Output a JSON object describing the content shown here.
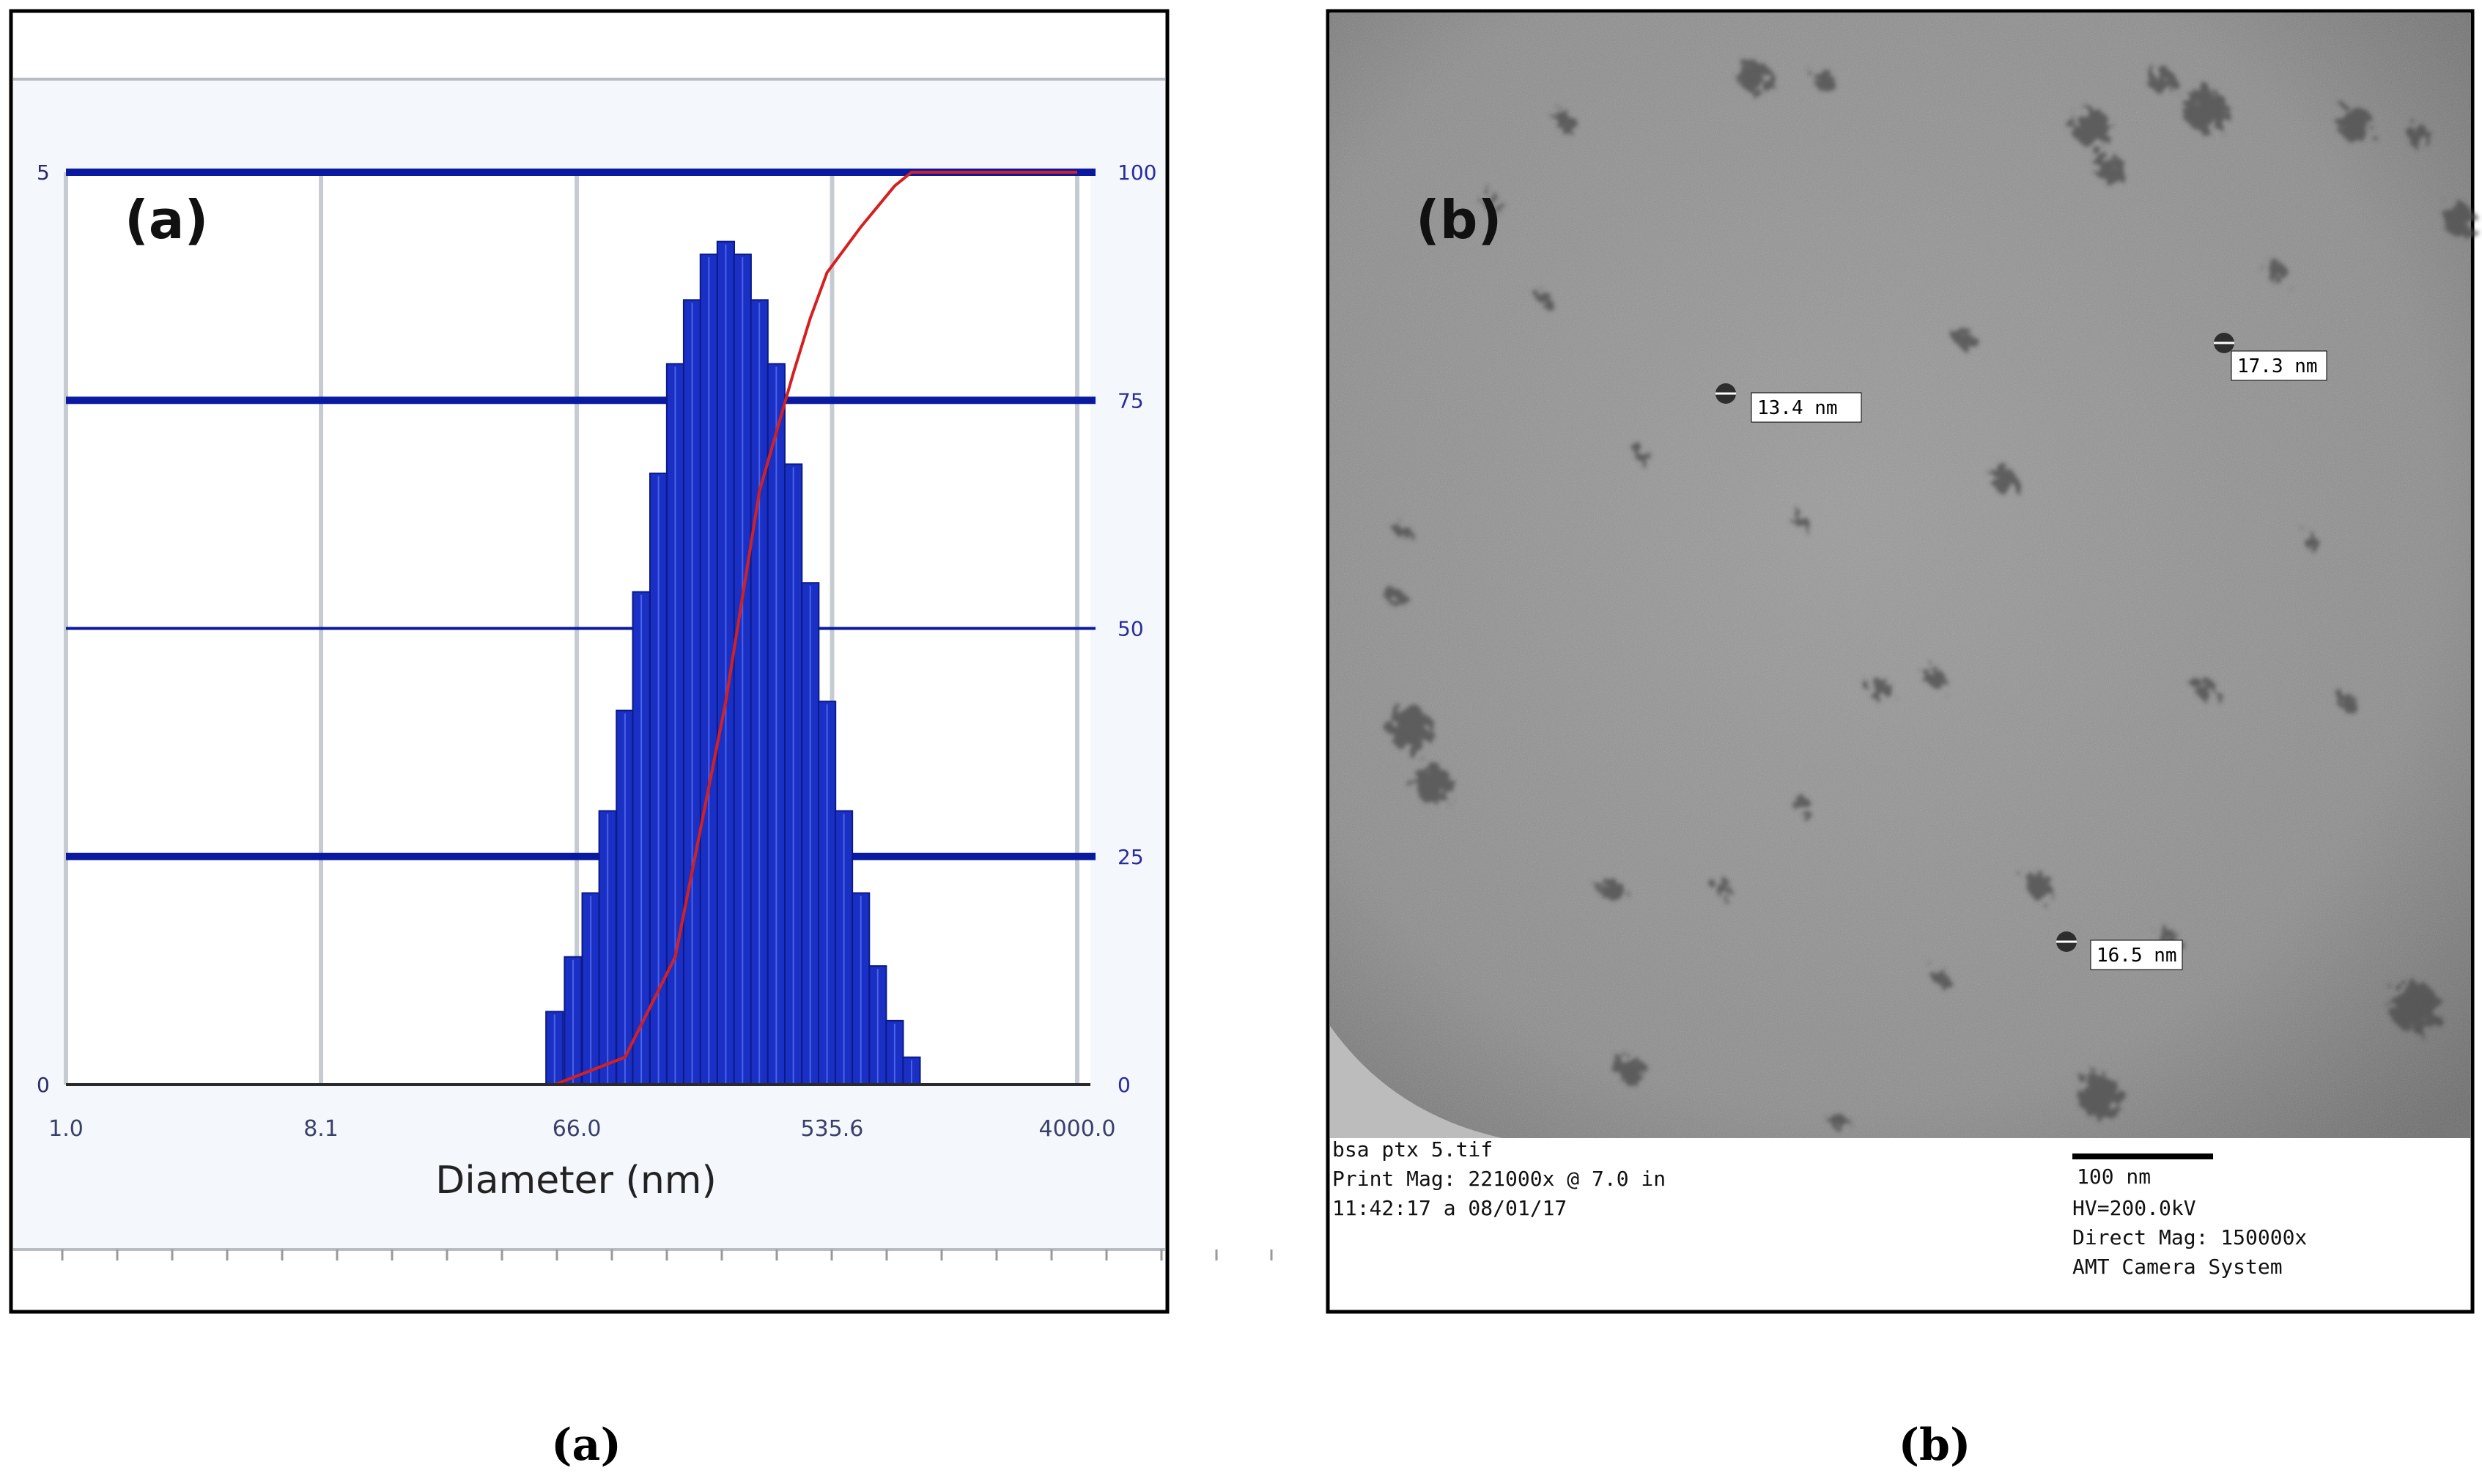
{
  "panel_a": {
    "label": "(a)",
    "caption": "(a)"
  },
  "panel_b": {
    "label": "(b)",
    "caption": "(b)",
    "measurements": [
      {
        "text": "13.4 nm"
      },
      {
        "text": "17.3 nm"
      },
      {
        "text": "16.5 nm"
      }
    ],
    "meta_left": [
      "bsa ptx 5.tif",
      "Print Mag: 221000x @ 7.0 in",
      "11:42:17 a 08/01/17"
    ],
    "scale_bar_label": "100 nm",
    "meta_right": [
      "HV=200.0kV",
      "Direct Mag: 150000x",
      "AMT Camera System"
    ]
  },
  "colors": {
    "bar_fill": "#1a2fc4",
    "bar_stroke": "#0a1a8a",
    "gridline_blue": "#0a1aa0",
    "cumulative_line": "#d42020",
    "tem_background": "#8a8a8a"
  },
  "chart_data": {
    "type": "bar",
    "x_scale": "log",
    "xlabel": "Diameter (nm)",
    "x_ticks": [
      {
        "value": 1.0,
        "label": "1.0"
      },
      {
        "value": 8.1,
        "label": "8.1"
      },
      {
        "value": 66.0,
        "label": "66.0"
      },
      {
        "value": 535.6,
        "label": "535.6"
      },
      {
        "value": 4000.0,
        "label": "4000.0"
      }
    ],
    "xlim": [
      1.0,
      4000.0
    ],
    "left_axis": {
      "ticks": [
        "0",
        "5"
      ],
      "ylim": [
        0,
        5
      ]
    },
    "right_axis": {
      "ticks": [
        "0",
        "25",
        "50",
        "75",
        "100"
      ],
      "ylim": [
        0,
        100
      ]
    },
    "grid": true,
    "x": [
      55,
      64,
      74,
      85,
      98,
      112,
      129,
      148,
      170,
      195,
      224,
      257,
      295,
      339,
      390,
      448,
      514,
      590,
      678,
      779,
      895,
      1028
    ],
    "values": [
      0.4,
      0.7,
      1.05,
      1.5,
      2.05,
      2.7,
      3.35,
      3.95,
      4.3,
      4.55,
      4.62,
      4.55,
      4.3,
      3.95,
      3.4,
      2.75,
      2.1,
      1.5,
      1.05,
      0.65,
      0.35,
      0.15
    ],
    "cumulative": {
      "x": [
        55,
        98,
        148,
        224,
        295,
        390,
        448,
        514,
        678,
        895,
        1028,
        1300,
        2000,
        4000
      ],
      "values": [
        0,
        3,
        14,
        42,
        65,
        78,
        84,
        89,
        94,
        98.5,
        100,
        100,
        100,
        100
      ]
    }
  }
}
